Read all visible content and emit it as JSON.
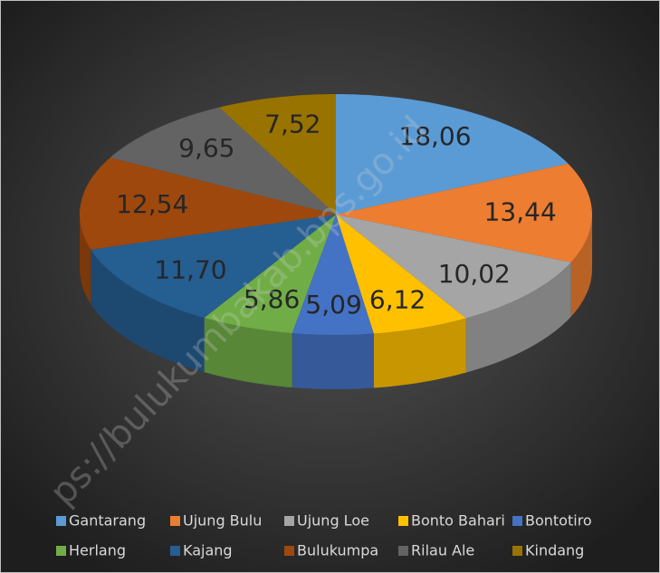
{
  "chart_data": {
    "type": "pie3d",
    "categories": [
      "Gantarang",
      "Ujung Bulu",
      "Ujung Loe",
      "Bonto Bahari",
      "Bontotiro",
      "Herlang",
      "Kajang",
      "Bulukumpa",
      "Rilau Ale",
      "Kindang"
    ],
    "values": [
      18.06,
      13.44,
      10.02,
      6.12,
      5.09,
      5.86,
      11.7,
      12.54,
      9.65,
      7.52
    ],
    "value_labels": [
      "18,06",
      "13,44",
      "10,02",
      "6,12",
      "5,09",
      "5,86",
      "11,70",
      "12,54",
      "9,65",
      "7,52"
    ],
    "colors": [
      "#5b9bd5",
      "#ed7d31",
      "#a5a5a5",
      "#ffc000",
      "#4472c4",
      "#70ad47",
      "#255e91",
      "#9e480e",
      "#636363",
      "#997300"
    ],
    "legend": "bottom",
    "watermark": "ps://bulukumbakab.bps.go.id"
  }
}
